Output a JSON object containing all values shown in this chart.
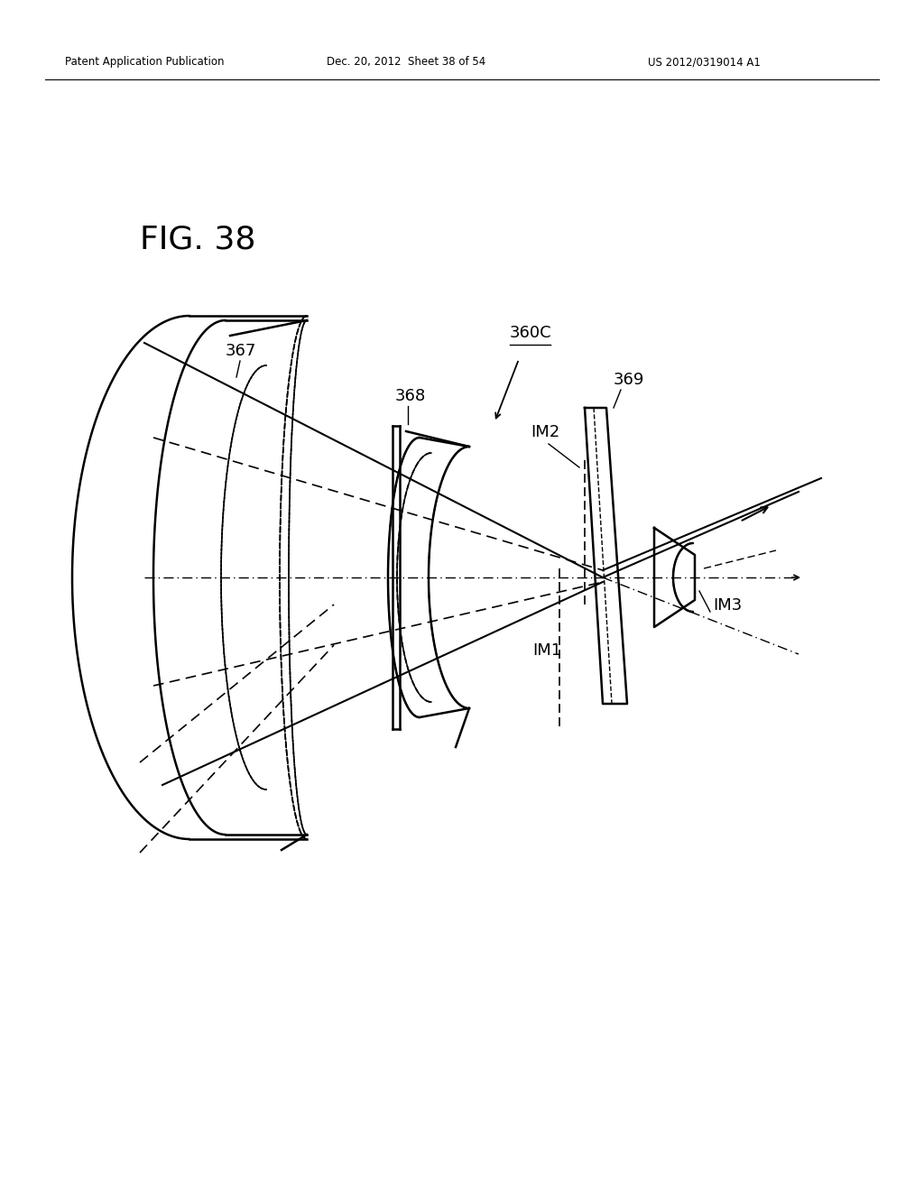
{
  "header_left": "Patent Application Publication",
  "header_mid": "Dec. 20, 2012  Sheet 38 of 54",
  "header_right": "US 2012/0319014 A1",
  "bg_color": "#ffffff",
  "line_color": "#000000",
  "fig_label": "FIG. 38",
  "label_360C": "360C",
  "label_367": "367",
  "label_368": "368",
  "label_369": "369",
  "label_IM1": "IM1",
  "label_IM2": "IM2",
  "label_IM3": "IM3"
}
